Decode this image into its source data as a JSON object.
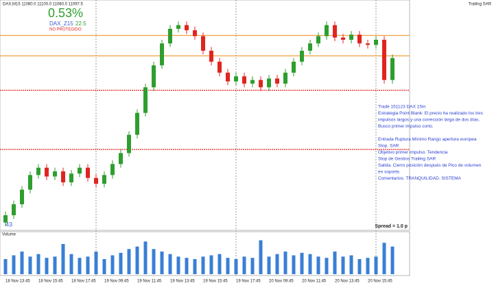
{
  "chart_data": {
    "type": "candlestick",
    "title": "DAX,M15 11080.0 11100.0 11080.0 11097.5",
    "indicator": "Trailing SAR",
    "change": "0.53%",
    "symbol": "DAX_Z15",
    "symbol_value": "22.5",
    "status": "NO PROTEGIDO",
    "spread": "Spread = 1.0 p",
    "corner_label": "43",
    "volume_title": "Volume",
    "notes": [
      "Trade 151123 DAX 15m",
      "Estrategia Point Blank: El precio ha realizado los tres",
      "impulsos largos y una corrección larga de dos días.",
      "Busco primer impulso corto.",
      "Entrada Ruptura Mínimo Rango apertura europea",
      "Stop. SAR",
      "Objetivo primer impulso. Tendencia",
      "Stop de Gestios Trailing SAR",
      "Salida. Cierro posición después de Pico de volumen",
      "en soporte.",
      "Comentarios. TRANQUILIDAD. SISTEMA"
    ],
    "categories": [
      "18 Nov 13:45",
      null,
      null,
      null,
      "18 Nov 15:45",
      null,
      null,
      null,
      "18 Nov 17:45",
      null,
      null,
      null,
      "19 Nov 09:45",
      null,
      null,
      null,
      "19 Nov 11:45",
      null,
      null,
      null,
      "19 Nov 13:45",
      null,
      null,
      null,
      "19 Nov 15:45",
      null,
      null,
      null,
      "19 Nov 17:45",
      null,
      null,
      null,
      "20 Nov 09:45",
      null,
      null,
      null,
      "20 Nov 11:45",
      null,
      null,
      null,
      "20 Nov 13:45",
      null,
      null,
      null,
      "20 Nov 15:45",
      null,
      null,
      null
    ],
    "open": [
      10805,
      10815,
      10830,
      10850,
      10870,
      10880,
      10868,
      10875,
      10860,
      10872,
      10880,
      10866,
      10858,
      10870,
      10885,
      10900,
      10925,
      10955,
      10990,
      11020,
      11050,
      11070,
      11075,
      11068,
      11060,
      11040,
      11025,
      11010,
      10998,
      11005,
      10995,
      11000,
      10990,
      11002,
      10995,
      11010,
      11025,
      11040,
      11050,
      11060,
      11075,
      11058,
      11055,
      11062,
      11050,
      11048,
      11055,
      11000
    ],
    "high": [
      10820,
      10835,
      10855,
      10875,
      10885,
      10885,
      10880,
      10880,
      10877,
      10885,
      10885,
      10871,
      10875,
      10890,
      10905,
      10930,
      10960,
      10995,
      11025,
      11055,
      11075,
      11080,
      11080,
      11073,
      11065,
      11045,
      11030,
      11015,
      11010,
      11010,
      11005,
      11005,
      11007,
      11007,
      11015,
      11030,
      11045,
      11055,
      11065,
      11080,
      11080,
      11063,
      11067,
      11067,
      11055,
      11060,
      11060,
      11035
    ],
    "low": [
      10800,
      10810,
      10825,
      10845,
      10865,
      10863,
      10863,
      10855,
      10855,
      10867,
      10861,
      10853,
      10853,
      10865,
      10880,
      10895,
      10920,
      10950,
      10985,
      11015,
      11045,
      11065,
      11063,
      11055,
      11035,
      11020,
      11005,
      10993,
      10993,
      10990,
      10990,
      10985,
      10985,
      10990,
      10990,
      11005,
      11020,
      11035,
      11045,
      11055,
      11053,
      11050,
      11050,
      11045,
      11043,
      11043,
      10995,
      10995
    ],
    "close": [
      10815,
      10830,
      10850,
      10870,
      10880,
      10868,
      10875,
      10860,
      10872,
      10880,
      10866,
      10858,
      10870,
      10885,
      10900,
      10925,
      10955,
      10990,
      11020,
      11050,
      11070,
      11075,
      11068,
      11060,
      11040,
      11025,
      11010,
      10998,
      11005,
      10995,
      11000,
      10990,
      11002,
      10995,
      11010,
      11025,
      11040,
      11050,
      11060,
      11075,
      11058,
      11055,
      11062,
      11050,
      11048,
      11055,
      11000,
      11030
    ],
    "volume": [
      600,
      750,
      900,
      700,
      800,
      650,
      700,
      1200,
      800,
      650,
      700,
      900,
      600,
      750,
      850,
      1000,
      1100,
      1300,
      1000,
      900,
      800,
      700,
      650,
      600,
      700,
      750,
      800,
      650,
      600,
      700,
      650,
      1350,
      700,
      800,
      900,
      750,
      850,
      800,
      700,
      650,
      900,
      700,
      750,
      600,
      650,
      700,
      1250,
      1100
    ],
    "up_color": "#2e9e2e",
    "down_color": "#e0241f",
    "volume_color": "#3a7fd5",
    "ylim": [
      10800,
      11100
    ],
    "volume_ylim": [
      0,
      1500
    ],
    "levels": [
      {
        "value": 11061,
        "color": "#f0a040"
      },
      {
        "value": 11033,
        "color": "#f0a040"
      },
      {
        "value": 10986,
        "color": "#e0241f"
      },
      {
        "value": 10905,
        "color": "#e0241f"
      }
    ]
  }
}
